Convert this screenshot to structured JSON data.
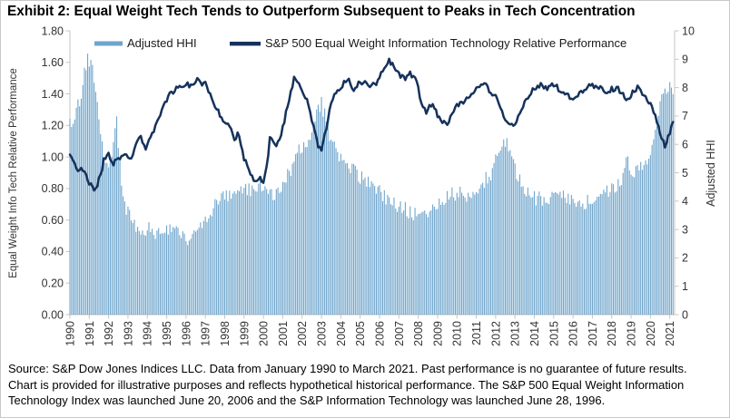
{
  "exhibit": {
    "title": "Exhibit 2: Equal Weight Tech Tends to Outperform Subsequent to Peaks in Tech Concentration"
  },
  "footer": {
    "lines": [
      "Source: S&P Dow Jones Indices LLC. Data from January 1990 to March 2021. Past performance is no guarantee of future results.",
      "Chart is provided for illustrative purposes and reflects hypothetical historical performance. The S&P 500 Equal Weight Information",
      "Technology Index was launched June 20, 2006 and the S&P Information Technology was launched June 28, 1996."
    ]
  },
  "chart_data": {
    "type": "bar+line combo, dual axis",
    "title": "Exhibit 2: Equal Weight Tech Tends to Outperform Subsequent to Peaks in Tech Concentration",
    "frequency": "monthly",
    "data_span": "January 1990 to March 2021",
    "x_start": 1990.0,
    "x_end": 2021.1667,
    "x_axis_max": 2021.25,
    "x_tick_years": [
      1990,
      1991,
      1992,
      1993,
      1994,
      1995,
      1996,
      1997,
      1998,
      1999,
      2000,
      2001,
      2002,
      2003,
      2004,
      2005,
      2006,
      2007,
      2008,
      2009,
      2010,
      2011,
      2012,
      2013,
      2014,
      2015,
      2016,
      2017,
      2018,
      2019,
      2020,
      2021
    ],
    "left_axis": {
      "title": "Equal Weight Info Tech Relative Performance",
      "min": 0,
      "max": 1.8,
      "tick_step": 0.2,
      "tick_labels": [
        "0.00",
        "0.20",
        "0.40",
        "0.60",
        "0.80",
        "1.00",
        "1.20",
        "1.40",
        "1.60",
        "1.80"
      ]
    },
    "right_axis": {
      "title": "Adjusted HHI",
      "min": 0,
      "max": 10,
      "tick_step": 1,
      "tick_labels": [
        "0",
        "1",
        "2",
        "3",
        "4",
        "5",
        "6",
        "7",
        "8",
        "9",
        "10"
      ]
    },
    "legend": {
      "position": "top",
      "items": [
        "Adjusted HHI",
        "S&P 500 Equal Weight Information Technology Relative Performance"
      ]
    },
    "grid": "off",
    "series": [
      {
        "name": "Adjusted HHI",
        "type": "bar",
        "axis": "right",
        "color": "#6FA5CC",
        "keypoints": [
          [
            1990.0,
            6.7
          ],
          [
            1990.17,
            6.9
          ],
          [
            1990.33,
            7.1
          ],
          [
            1990.5,
            7.6
          ],
          [
            1990.67,
            8.1
          ],
          [
            1990.83,
            8.8
          ],
          [
            1990.92,
            9.1
          ],
          [
            1991.0,
            8.8
          ],
          [
            1991.08,
            9.0
          ],
          [
            1991.25,
            8.3
          ],
          [
            1991.42,
            7.2
          ],
          [
            1991.58,
            6.2
          ],
          [
            1991.75,
            5.7
          ],
          [
            1992.0,
            5.2
          ],
          [
            1992.17,
            5.6
          ],
          [
            1992.33,
            6.5
          ],
          [
            1992.42,
            6.8
          ],
          [
            1992.5,
            5.9
          ],
          [
            1992.67,
            4.7
          ],
          [
            1992.83,
            4.0
          ],
          [
            1993.0,
            3.6
          ],
          [
            1993.25,
            3.3
          ],
          [
            1993.5,
            3.1
          ],
          [
            1994.0,
            3.0
          ],
          [
            1994.5,
            2.9
          ],
          [
            1995.0,
            3.0
          ],
          [
            1995.5,
            2.9
          ],
          [
            1995.9,
            2.75
          ],
          [
            1996.2,
            2.7
          ],
          [
            1996.6,
            3.0
          ],
          [
            1997.0,
            3.4
          ],
          [
            1997.5,
            3.9
          ],
          [
            1998.0,
            4.1
          ],
          [
            1998.5,
            4.3
          ],
          [
            1999.0,
            4.3
          ],
          [
            1999.5,
            4.5
          ],
          [
            1999.9,
            4.6
          ],
          [
            2000.2,
            4.5
          ],
          [
            2000.6,
            4.1
          ],
          [
            2001.0,
            4.5
          ],
          [
            2001.4,
            5.1
          ],
          [
            2001.8,
            5.7
          ],
          [
            2002.1,
            5.9
          ],
          [
            2002.5,
            6.5
          ],
          [
            2002.8,
            7.3
          ],
          [
            2003.0,
            7.5
          ],
          [
            2003.2,
            6.9
          ],
          [
            2003.5,
            6.1
          ],
          [
            2003.9,
            5.6
          ],
          [
            2004.5,
            5.2
          ],
          [
            2005.2,
            4.7
          ],
          [
            2006.0,
            4.3
          ],
          [
            2006.9,
            3.9
          ],
          [
            2007.6,
            3.6
          ],
          [
            2008.1,
            3.4
          ],
          [
            2008.6,
            3.7
          ],
          [
            2009.0,
            3.9
          ],
          [
            2009.5,
            4.2
          ],
          [
            2010.5,
            4.25
          ],
          [
            2011.2,
            4.5
          ],
          [
            2011.8,
            5.0
          ],
          [
            2012.1,
            5.7
          ],
          [
            2012.4,
            6.3
          ],
          [
            2012.6,
            6.0
          ],
          [
            2013.0,
            5.1
          ],
          [
            2013.5,
            4.4
          ],
          [
            2014.0,
            4.1
          ],
          [
            2014.7,
            4.0
          ],
          [
            2015.2,
            4.3
          ],
          [
            2015.8,
            4.1
          ],
          [
            2016.3,
            3.9
          ],
          [
            2016.8,
            4.0
          ],
          [
            2017.5,
            4.2
          ],
          [
            2018.1,
            4.4
          ],
          [
            2018.6,
            4.8
          ],
          [
            2018.8,
            5.7
          ],
          [
            2019.0,
            5.0
          ],
          [
            2019.4,
            5.2
          ],
          [
            2019.9,
            5.4
          ],
          [
            2020.2,
            6.4
          ],
          [
            2020.5,
            7.3
          ],
          [
            2020.75,
            8.2
          ],
          [
            2020.9,
            7.8
          ],
          [
            2021.0,
            8.0
          ],
          [
            2021.17,
            7.7
          ]
        ]
      },
      {
        "name": "S&P 500 Equal Weight Information Technology Relative Performance",
        "type": "line",
        "axis": "left",
        "color": "#15325B",
        "keypoints": [
          [
            1990.0,
            1.0
          ],
          [
            1990.2,
            0.97
          ],
          [
            1990.4,
            0.92
          ],
          [
            1990.6,
            0.95
          ],
          [
            1990.8,
            0.88
          ],
          [
            1991.0,
            0.84
          ],
          [
            1991.2,
            0.8
          ],
          [
            1991.4,
            0.81
          ],
          [
            1991.6,
            0.9
          ],
          [
            1991.8,
            1.0
          ],
          [
            1992.0,
            1.02
          ],
          [
            1992.2,
            0.95
          ],
          [
            1992.5,
            0.99
          ],
          [
            1992.8,
            1.03
          ],
          [
            1993.0,
            1.0
          ],
          [
            1993.2,
            0.99
          ],
          [
            1993.5,
            1.1
          ],
          [
            1993.65,
            1.13
          ],
          [
            1993.9,
            1.06
          ],
          [
            1994.1,
            1.1
          ],
          [
            1994.35,
            1.16
          ],
          [
            1994.6,
            1.25
          ],
          [
            1994.9,
            1.33
          ],
          [
            1995.2,
            1.4
          ],
          [
            1995.5,
            1.44
          ],
          [
            1995.8,
            1.43
          ],
          [
            1996.0,
            1.47
          ],
          [
            1996.3,
            1.44
          ],
          [
            1996.55,
            1.5
          ],
          [
            1996.8,
            1.46
          ],
          [
            1997.0,
            1.48
          ],
          [
            1997.25,
            1.4
          ],
          [
            1997.5,
            1.33
          ],
          [
            1997.8,
            1.26
          ],
          [
            1998.0,
            1.22
          ],
          [
            1998.3,
            1.19
          ],
          [
            1998.5,
            1.11
          ],
          [
            1998.7,
            1.16
          ],
          [
            1999.0,
            0.99
          ],
          [
            1999.2,
            0.93
          ],
          [
            1999.45,
            0.86
          ],
          [
            1999.65,
            0.83
          ],
          [
            1999.8,
            0.89
          ],
          [
            2000.0,
            0.84
          ],
          [
            2000.2,
            0.95
          ],
          [
            2000.35,
            1.15
          ],
          [
            2000.55,
            1.06
          ],
          [
            2000.8,
            1.1
          ],
          [
            2001.0,
            1.18
          ],
          [
            2001.3,
            1.36
          ],
          [
            2001.6,
            1.5
          ],
          [
            2001.85,
            1.47
          ],
          [
            2002.0,
            1.42
          ],
          [
            2002.25,
            1.37
          ],
          [
            2002.5,
            1.24
          ],
          [
            2002.8,
            1.08
          ],
          [
            2003.0,
            1.03
          ],
          [
            2003.3,
            1.22
          ],
          [
            2003.6,
            1.39
          ],
          [
            2003.9,
            1.43
          ],
          [
            2004.2,
            1.47
          ],
          [
            2004.4,
            1.5
          ],
          [
            2004.6,
            1.41
          ],
          [
            2004.9,
            1.46
          ],
          [
            2005.2,
            1.47
          ],
          [
            2005.5,
            1.45
          ],
          [
            2005.9,
            1.47
          ],
          [
            2006.2,
            1.56
          ],
          [
            2006.5,
            1.62
          ],
          [
            2006.8,
            1.55
          ],
          [
            2007.0,
            1.52
          ],
          [
            2007.3,
            1.5
          ],
          [
            2007.6,
            1.53
          ],
          [
            2007.9,
            1.49
          ],
          [
            2008.2,
            1.32
          ],
          [
            2008.4,
            1.28
          ],
          [
            2008.6,
            1.35
          ],
          [
            2008.9,
            1.29
          ],
          [
            2009.1,
            1.25
          ],
          [
            2009.45,
            1.2
          ],
          [
            2009.7,
            1.27
          ],
          [
            2010.0,
            1.33
          ],
          [
            2010.4,
            1.36
          ],
          [
            2010.8,
            1.39
          ],
          [
            2011.1,
            1.44
          ],
          [
            2011.45,
            1.48
          ],
          [
            2011.7,
            1.42
          ],
          [
            2012.0,
            1.38
          ],
          [
            2012.3,
            1.3
          ],
          [
            2012.6,
            1.22
          ],
          [
            2012.9,
            1.19
          ],
          [
            2013.2,
            1.27
          ],
          [
            2013.6,
            1.36
          ],
          [
            2014.0,
            1.44
          ],
          [
            2014.3,
            1.46
          ],
          [
            2014.6,
            1.43
          ],
          [
            2015.0,
            1.46
          ],
          [
            2015.3,
            1.43
          ],
          [
            2015.7,
            1.39
          ],
          [
            2016.0,
            1.35
          ],
          [
            2016.4,
            1.41
          ],
          [
            2016.7,
            1.44
          ],
          [
            2017.0,
            1.46
          ],
          [
            2017.3,
            1.44
          ],
          [
            2017.7,
            1.42
          ],
          [
            2018.0,
            1.43
          ],
          [
            2018.3,
            1.44
          ],
          [
            2018.6,
            1.39
          ],
          [
            2018.85,
            1.36
          ],
          [
            2019.05,
            1.4
          ],
          [
            2019.3,
            1.44
          ],
          [
            2019.6,
            1.4
          ],
          [
            2019.9,
            1.36
          ],
          [
            2020.1,
            1.3
          ],
          [
            2020.3,
            1.24
          ],
          [
            2020.5,
            1.15
          ],
          [
            2020.65,
            1.09
          ],
          [
            2020.8,
            1.07
          ],
          [
            2020.95,
            1.14
          ],
          [
            2021.05,
            1.18
          ],
          [
            2021.17,
            1.23
          ]
        ]
      }
    ]
  }
}
